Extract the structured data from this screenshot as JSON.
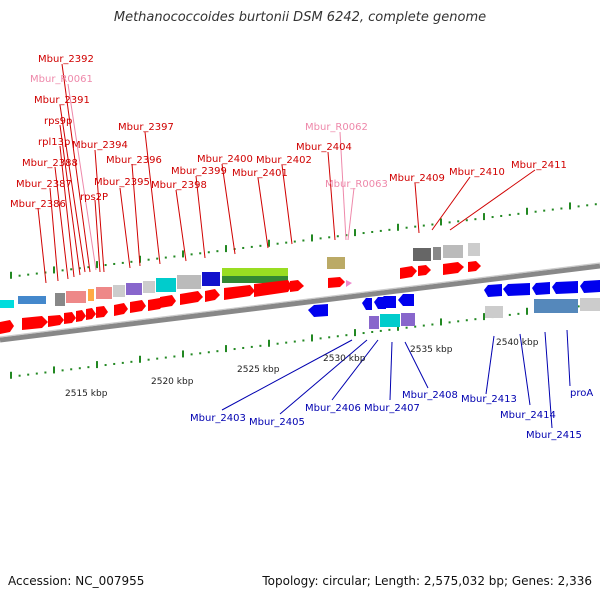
{
  "title": "Methanococcoides burtonii DSM 6242, complete genome",
  "footer": {
    "accession": "Accession: NC_007955",
    "topology": "Topology: circular; Length: 2,575,032 bp; Genes: 2,336"
  },
  "colors": {
    "forward_label": "#d00000",
    "reverse_label": "#0000b0",
    "rna_label": "#ee88aa",
    "forward_cds": "#ff0000",
    "reverse_cds": "#0000ee",
    "rna_feature": "#ee88cc",
    "backbone": "#888888",
    "tick": "#228822"
  },
  "kbp_ticks": [
    "2515 kbp",
    "2520 kbp",
    "2525 kbp",
    "2530 kbp",
    "2535 kbp",
    "2540 kbp"
  ],
  "forward_labels": [
    "Mbur_2392",
    "Mbur_2391",
    "rps9p",
    "rpl13p",
    "Mbur_2388",
    "Mbur_2387",
    "Mbur_2386",
    "Mbur_2394",
    "Mbur_2397",
    "rps2P",
    "Mbur_2396",
    "Mbur_2395",
    "Mbur_2399",
    "Mbur_2398",
    "Mbur_2400",
    "Mbur_2401",
    "Mbur_2402",
    "Mbur_2404",
    "Mbur_2409",
    "Mbur_2410",
    "Mbur_2411"
  ],
  "rna_labels": [
    "Mbur_R0061",
    "Mbur_R0062",
    "Mbur_R0063"
  ],
  "reverse_labels": [
    "Mbur_2403",
    "Mbur_2405",
    "Mbur_2406",
    "Mbur_2407",
    "Mbur_2408",
    "Mbur_2413",
    "Mbur_2414",
    "Mbur_2415",
    "proA"
  ]
}
